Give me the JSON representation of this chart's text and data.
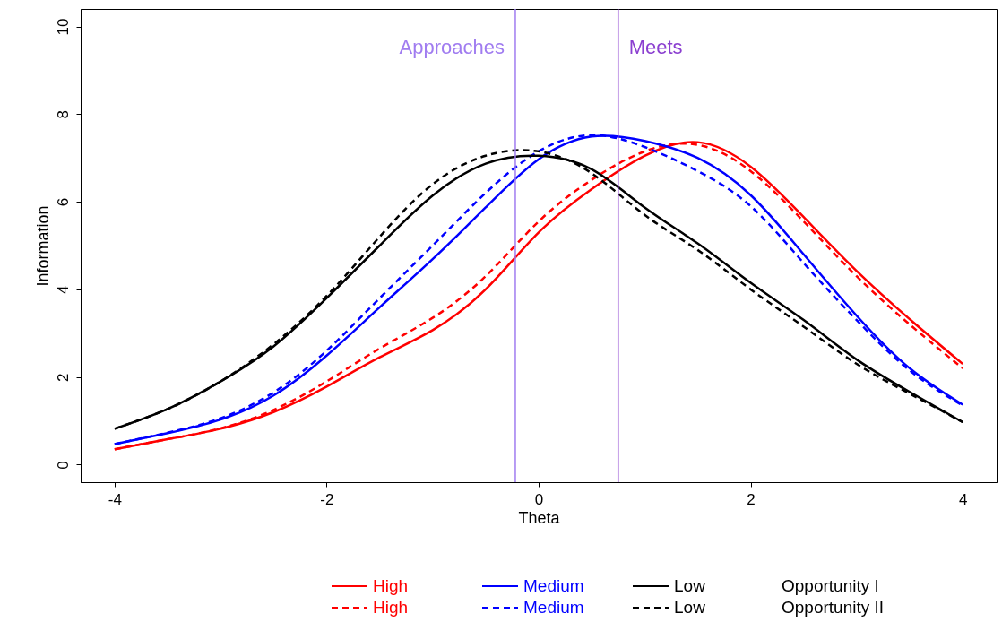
{
  "chart_data": {
    "type": "line",
    "xlabel": "Theta",
    "ylabel": "Information",
    "x": [
      -4,
      -3.5,
      -3,
      -2.5,
      -2,
      -1.5,
      -1,
      -0.5,
      0,
      0.5,
      1,
      1.5,
      2,
      2.5,
      3,
      3.5,
      4
    ],
    "xlim": [
      -4.32,
      4.32
    ],
    "ylim": [
      -0.4,
      10.4
    ],
    "xticks": [
      -4,
      -2,
      0,
      2,
      4
    ],
    "yticks": [
      0,
      2,
      4,
      6,
      8,
      10
    ],
    "grid": false,
    "legend": "bottom",
    "series": [
      {
        "name": "High",
        "color": "#ff0000",
        "line_style": "solid",
        "values": [
          0.35,
          0.58,
          0.82,
          1.2,
          1.78,
          2.45,
          3.07,
          4.0,
          5.3,
          6.29,
          7.05,
          7.36,
          6.8,
          5.65,
          4.42,
          3.32,
          2.3
        ]
      },
      {
        "name": "High",
        "color": "#ff0000",
        "line_style": "dashed",
        "values": [
          0.35,
          0.58,
          0.83,
          1.25,
          1.9,
          2.65,
          3.35,
          4.3,
          5.55,
          6.5,
          7.15,
          7.3,
          6.7,
          5.55,
          4.3,
          3.2,
          2.2
        ]
      },
      {
        "name": "Medium",
        "color": "#0000ff",
        "line_style": "solid",
        "values": [
          0.47,
          0.72,
          1.03,
          1.58,
          2.49,
          3.59,
          4.69,
          5.87,
          6.97,
          7.49,
          7.39,
          7.0,
          6.15,
          4.8,
          3.4,
          2.2,
          1.37
        ]
      },
      {
        "name": "Medium",
        "color": "#0000ff",
        "line_style": "dashed",
        "values": [
          0.47,
          0.73,
          1.06,
          1.65,
          2.6,
          3.8,
          5.0,
          6.2,
          7.15,
          7.52,
          7.25,
          6.7,
          5.9,
          4.6,
          3.3,
          2.15,
          1.35
        ]
      },
      {
        "name": "Low",
        "color": "#000000",
        "line_style": "solid",
        "values": [
          0.82,
          1.27,
          1.9,
          2.7,
          3.8,
          5.0,
          6.14,
          6.87,
          7.05,
          6.74,
          5.87,
          5.05,
          4.15,
          3.3,
          2.4,
          1.66,
          0.97
        ]
      },
      {
        "name": "Low",
        "color": "#000000",
        "line_style": "dashed",
        "values": [
          0.82,
          1.27,
          1.9,
          2.75,
          3.85,
          5.2,
          6.4,
          7.05,
          7.15,
          6.65,
          5.7,
          4.9,
          4.0,
          3.15,
          2.3,
          1.62,
          0.97
        ]
      }
    ],
    "ref_lines": [
      {
        "axis": "x",
        "value": -0.22,
        "label": "Approaches",
        "color": "#a07cf0"
      },
      {
        "axis": "x",
        "value": 0.75,
        "label": "Meets",
        "color": "#8b3fd0"
      }
    ],
    "annotations": [
      "Opportunity I",
      "Opportunity II"
    ]
  }
}
